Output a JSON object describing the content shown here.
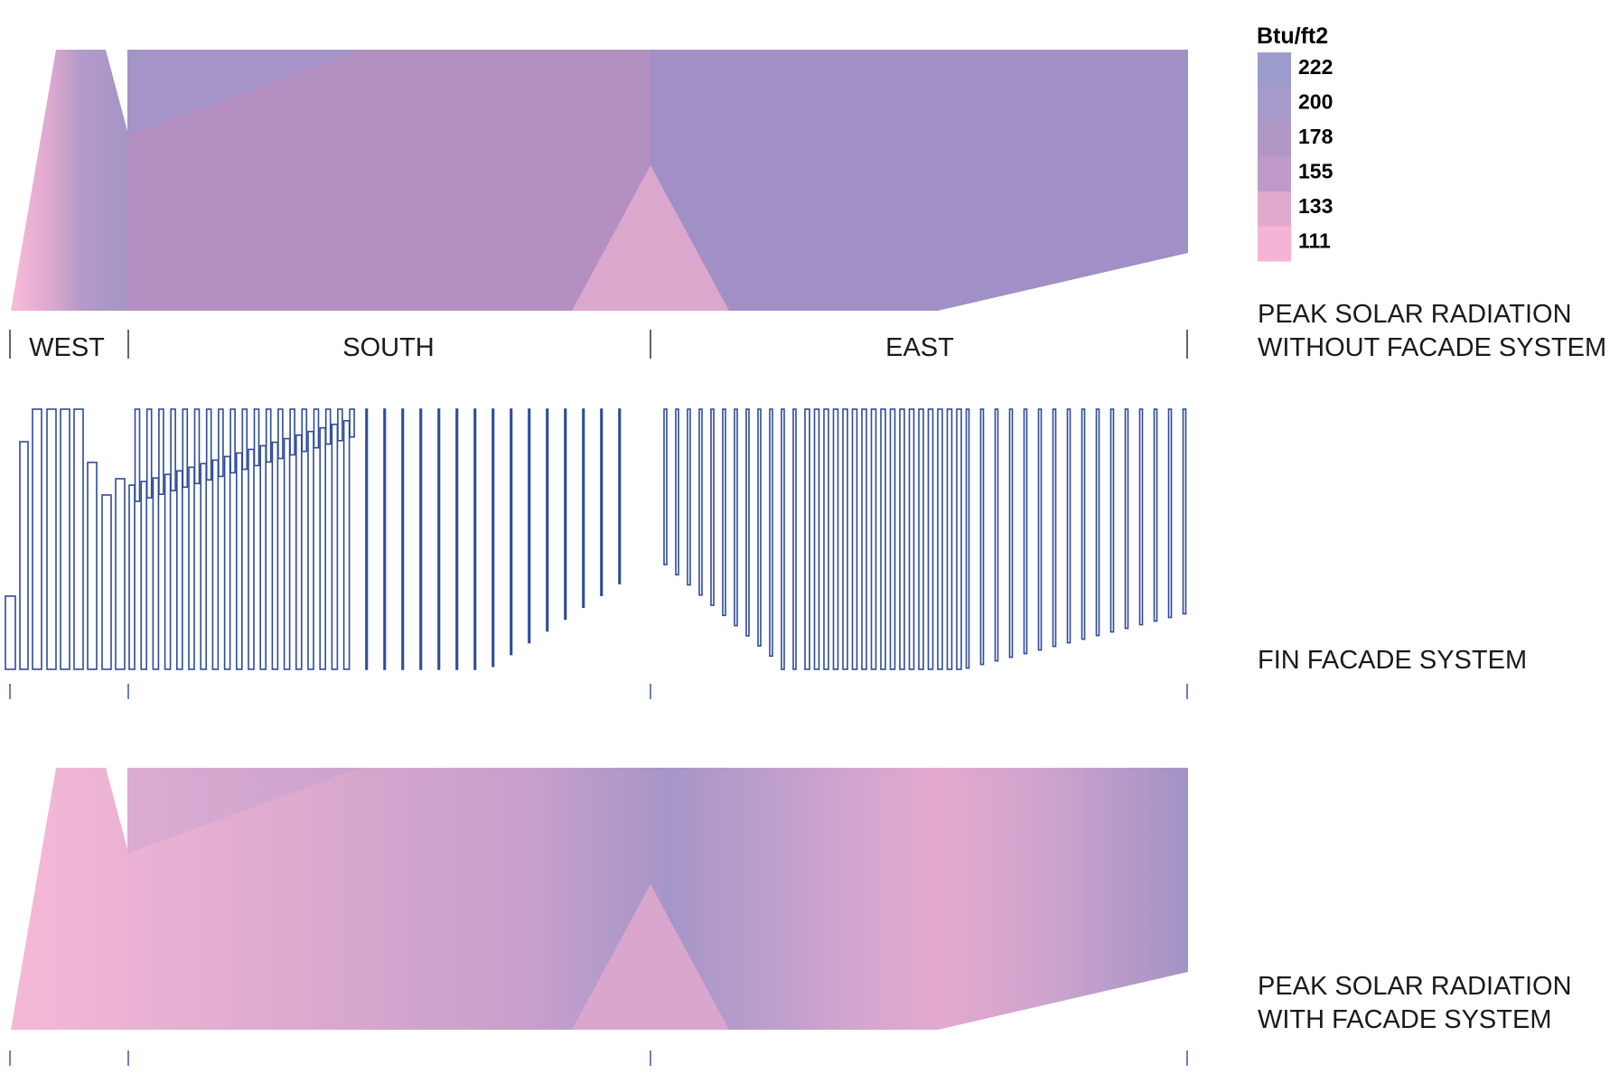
{
  "legend": {
    "unit": "Btu/ft2",
    "items": [
      {
        "value": "222",
        "color": "#9b9bcc"
      },
      {
        "value": "200",
        "color": "#a79bcb"
      },
      {
        "value": "178",
        "color": "#b097c5"
      },
      {
        "value": "155",
        "color": "#bf9ac8"
      },
      {
        "value": "133",
        "color": "#e1a9ce"
      },
      {
        "value": "111",
        "color": "#f5b4d6"
      }
    ]
  },
  "captions": {
    "without_line1": "PEAK SOLAR RADIATION",
    "without_line2": "WITHOUT FACADE SYSTEM",
    "fin": "FIN FACADE SYSTEM",
    "with_line1": "PEAK SOLAR RADIATION",
    "with_line2": "WITH FACADE SYSTEM"
  },
  "facades": {
    "west": "WEST",
    "south": "SOUTH",
    "east": "EAST"
  },
  "colors": {
    "fin_stroke": "#2e4a9a",
    "purple": "#a091c6",
    "mauve": "#b48fc2",
    "pink": "#dba7cd",
    "light_pink": "#f5b7d6"
  }
}
